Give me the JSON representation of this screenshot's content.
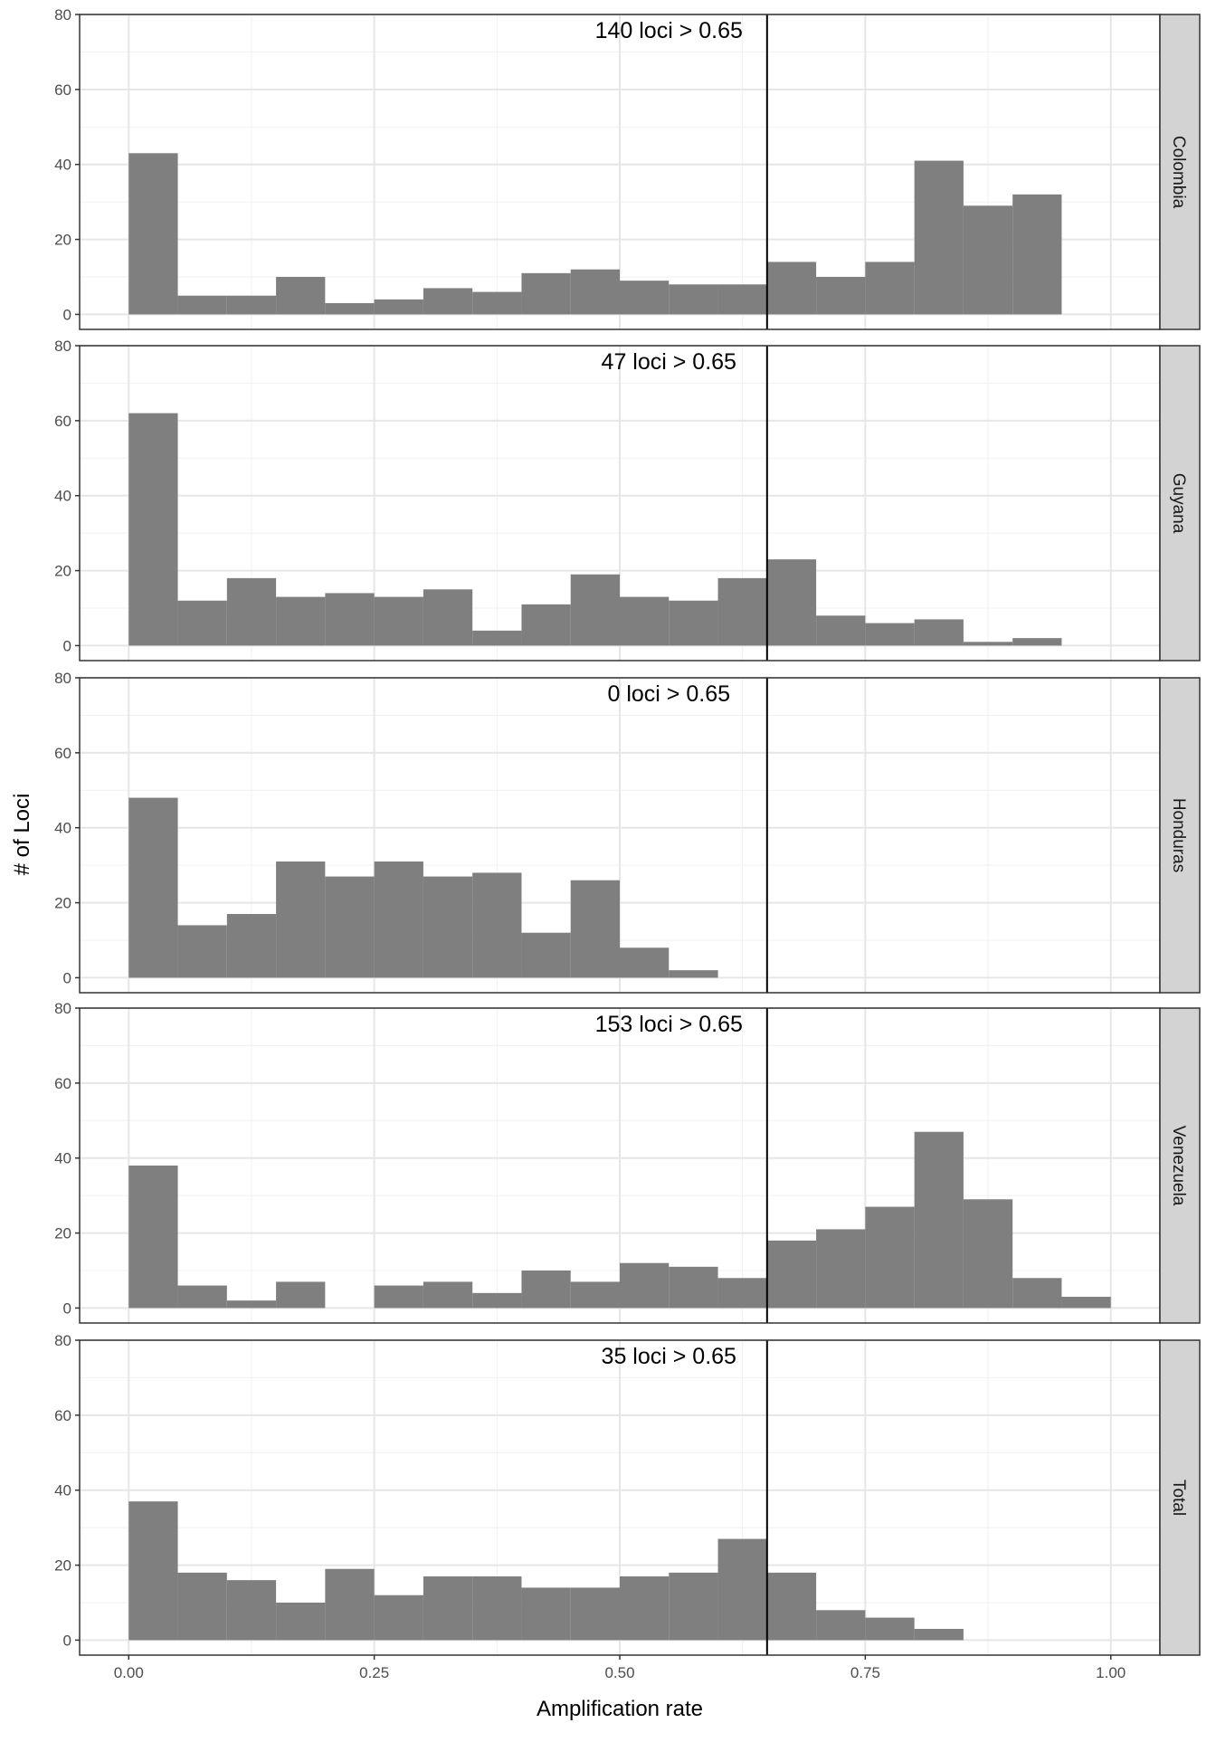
{
  "chart_data": {
    "type": "bar",
    "subtype": "faceted-histogram",
    "xlabel": "Amplification rate",
    "ylabel": "# of Loci",
    "xlim": [
      -0.05,
      1.05
    ],
    "ylim": [
      0,
      80
    ],
    "x_ticks": [
      "0.00",
      "0.25",
      "0.50",
      "0.75",
      "1.00"
    ],
    "x_tick_values": [
      0,
      0.25,
      0.5,
      0.75,
      1.0
    ],
    "y_ticks": [
      0,
      20,
      40,
      60,
      80
    ],
    "bin_width": 0.05,
    "bin_starts": [
      0,
      0.05,
      0.1,
      0.15,
      0.2,
      0.25,
      0.3,
      0.35,
      0.4,
      0.45,
      0.5,
      0.55,
      0.6,
      0.65,
      0.7,
      0.75,
      0.8,
      0.85,
      0.9,
      0.95
    ],
    "threshold": 0.65,
    "grid": true,
    "bar_color": "#7f7f7f",
    "strip_color": "#d3d3d3",
    "panels": [
      {
        "name": "Colombia",
        "annotation": "140 loci > 0.65",
        "values": [
          43,
          5,
          5,
          10,
          3,
          4,
          7,
          6,
          11,
          12,
          9,
          8,
          8,
          14,
          10,
          14,
          41,
          29,
          32,
          0
        ]
      },
      {
        "name": "Guyana",
        "annotation": "47 loci > 0.65",
        "values": [
          62,
          12,
          18,
          13,
          14,
          13,
          15,
          4,
          11,
          19,
          13,
          12,
          18,
          23,
          8,
          6,
          7,
          1,
          2,
          0
        ]
      },
      {
        "name": "Honduras",
        "annotation": "0 loci > 0.65",
        "values": [
          48,
          14,
          17,
          31,
          27,
          31,
          27,
          28,
          12,
          26,
          8,
          2,
          0,
          0,
          0,
          0,
          0,
          0,
          0,
          0
        ]
      },
      {
        "name": "Venezuela",
        "annotation": "153 loci > 0.65",
        "values": [
          38,
          6,
          2,
          7,
          0,
          6,
          7,
          4,
          10,
          7,
          12,
          11,
          8,
          18,
          21,
          27,
          47,
          29,
          8,
          3
        ]
      },
      {
        "name": "Total",
        "annotation": "35 loci > 0.65",
        "values": [
          37,
          18,
          16,
          10,
          19,
          12,
          17,
          17,
          14,
          14,
          17,
          18,
          27,
          18,
          8,
          6,
          3,
          0,
          0,
          0
        ]
      }
    ]
  }
}
